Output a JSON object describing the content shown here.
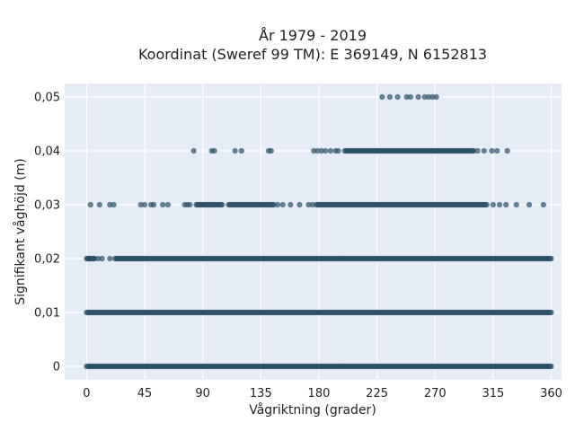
{
  "chart_data": {
    "type": "scatter",
    "title": "År 1979 - 2019",
    "subtitle": "Koordinat (Sweref 99 TM): E 369149, N 6152813",
    "xlabel": "Vågriktning (grader)",
    "ylabel": "Signifikant våghöjd (m)",
    "xlim": [
      -17,
      368
    ],
    "ylim": [
      -0.0025,
      0.0525
    ],
    "xticks": [
      0,
      45,
      90,
      135,
      180,
      225,
      270,
      315,
      360
    ],
    "xtick_labels": [
      "0",
      "45",
      "90",
      "135",
      "180",
      "225",
      "270",
      "315",
      "360"
    ],
    "yticks": [
      0,
      0.01,
      0.02,
      0.03,
      0.04,
      0.05
    ],
    "ytick_labels": [
      "0",
      "0,01",
      "0,02",
      "0,03",
      "0,04",
      "0,05"
    ],
    "grid": true,
    "series": [
      {
        "y": 0,
        "ranges": [
          [
            0,
            360
          ]
        ],
        "points": []
      },
      {
        "y": 0.01,
        "ranges": [
          [
            0,
            360
          ]
        ],
        "points": []
      },
      {
        "y": 0.02,
        "ranges": [
          [
            0,
            6
          ],
          [
            22,
            360
          ]
        ],
        "points": [
          1,
          3,
          6,
          9,
          12,
          18,
          24,
          28,
          31,
          34,
          37,
          40
        ]
      },
      {
        "y": 0.03,
        "ranges": [
          [
            85,
            105
          ],
          [
            110,
            145
          ],
          [
            178,
            310
          ]
        ],
        "points": [
          3,
          10,
          18,
          21,
          42,
          45,
          50,
          52,
          59,
          63,
          76,
          78,
          80,
          148,
          152,
          158,
          165,
          172,
          175,
          315,
          320,
          325,
          333,
          343,
          354
        ]
      },
      {
        "y": 0.04,
        "ranges": [
          [
            200,
            300
          ]
        ],
        "points": [
          83,
          97,
          99,
          115,
          120,
          141,
          143,
          176,
          179,
          182,
          185,
          189,
          193,
          195,
          303,
          308,
          314,
          318,
          326
        ]
      },
      {
        "y": 0.05,
        "ranges": [],
        "points": [
          229,
          235,
          241,
          248,
          251,
          257,
          262,
          265,
          268,
          271
        ]
      }
    ]
  }
}
